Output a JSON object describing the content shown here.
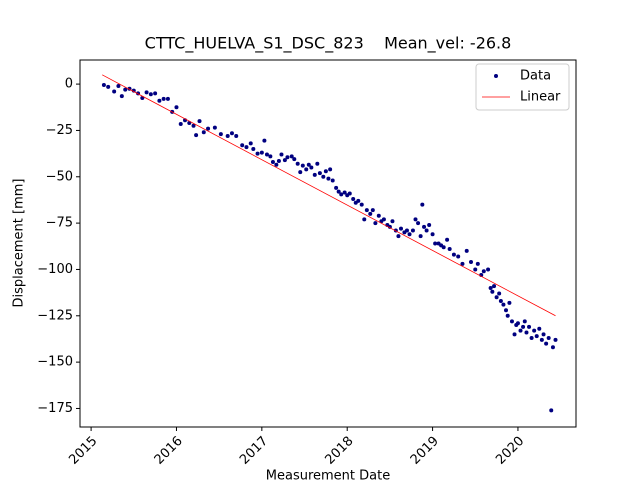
{
  "chart_data": {
    "type": "scatter",
    "title": "CTTC_HUELVA_S1_DSC_823    Mean_vel: -26.8",
    "x_label": "Measurement Date",
    "y_label": "Displacement [mm]",
    "xlim": [
      2014.87,
      2020.68
    ],
    "ylim": [
      -185,
      13
    ],
    "xticks": [
      2015,
      2016,
      2017,
      2018,
      2019,
      2020
    ],
    "yticks": [
      {
        "value": 0,
        "label": "0"
      },
      {
        "value": -25,
        "label": "−25"
      },
      {
        "value": -50,
        "label": "−50"
      },
      {
        "value": -75,
        "label": "−75"
      },
      {
        "value": -100,
        "label": "−100"
      },
      {
        "value": -125,
        "label": "−125"
      },
      {
        "value": -150,
        "label": "−150"
      },
      {
        "value": -175,
        "label": "−175"
      }
    ],
    "legend": "upper right",
    "series": [
      {
        "name": "Data",
        "mode": "markers",
        "color": "#000080",
        "x": [
          2015.15,
          2015.2,
          2015.27,
          2015.32,
          2015.36,
          2015.4,
          2015.45,
          2015.5,
          2015.55,
          2015.6,
          2015.65,
          2015.7,
          2015.75,
          2015.8,
          2015.85,
          2015.9,
          2015.95,
          2016.0,
          2016.05,
          2016.1,
          2016.15,
          2016.2,
          2016.23,
          2016.27,
          2016.32,
          2016.37,
          2016.45,
          2016.52,
          2016.6,
          2016.65,
          2016.7,
          2016.77,
          2016.82,
          2016.87,
          2016.9,
          2016.95,
          2017.0,
          2017.03,
          2017.06,
          2017.1,
          2017.13,
          2017.17,
          2017.2,
          2017.23,
          2017.27,
          2017.3,
          2017.35,
          2017.38,
          2017.42,
          2017.45,
          2017.48,
          2017.52,
          2017.55,
          2017.58,
          2017.62,
          2017.65,
          2017.68,
          2017.72,
          2017.75,
          2017.78,
          2017.8,
          2017.83,
          2017.87,
          2017.9,
          2017.93,
          2017.97,
          2018.0,
          2018.03,
          2018.07,
          2018.1,
          2018.13,
          2018.17,
          2018.2,
          2018.23,
          2018.27,
          2018.3,
          2018.33,
          2018.37,
          2018.4,
          2018.43,
          2018.47,
          2018.5,
          2018.53,
          2018.57,
          2018.6,
          2018.63,
          2018.67,
          2018.7,
          2018.73,
          2018.77,
          2018.8,
          2018.83,
          2018.86,
          2018.88,
          2018.9,
          2018.93,
          2018.96,
          2019.0,
          2019.03,
          2019.07,
          2019.1,
          2019.13,
          2019.17,
          2019.2,
          2019.25,
          2019.3,
          2019.35,
          2019.4,
          2019.45,
          2019.5,
          2019.53,
          2019.57,
          2019.6,
          2019.65,
          2019.68,
          2019.7,
          2019.72,
          2019.75,
          2019.78,
          2019.8,
          2019.83,
          2019.86,
          2019.88,
          2019.9,
          2019.93,
          2019.96,
          2019.98,
          2020.0,
          2020.03,
          2020.06,
          2020.08,
          2020.1,
          2020.13,
          2020.16,
          2020.19,
          2020.22,
          2020.25,
          2020.28,
          2020.3,
          2020.33,
          2020.36,
          2020.39,
          2020.41,
          2020.44
        ],
        "values": [
          -0.5,
          -1.5,
          -4,
          -1,
          -6.5,
          -3,
          -2.5,
          -3.5,
          -5,
          -7.5,
          -4.5,
          -5.5,
          -5,
          -9,
          -8,
          -8,
          -15,
          -12.5,
          -21.5,
          -19.5,
          -21,
          -22.5,
          -27.5,
          -20,
          -26,
          -24,
          -23.5,
          -27,
          -28,
          -26.5,
          -28,
          -33,
          -34,
          -32,
          -35,
          -37.5,
          -37,
          -30.5,
          -38,
          -39,
          -42,
          -43.5,
          -41.5,
          -38,
          -41,
          -39.5,
          -39,
          -40.5,
          -43,
          -47.5,
          -44,
          -46,
          -43.5,
          -45,
          -49,
          -43,
          -48,
          -50,
          -47,
          -51,
          -46,
          -52,
          -56,
          -58,
          -59.5,
          -58.5,
          -60,
          -59,
          -62,
          -64,
          -63,
          -65,
          -73,
          -68,
          -70,
          -68,
          -75,
          -71,
          -74,
          -73,
          -76,
          -77,
          -74,
          -79,
          -82,
          -78,
          -80,
          -79,
          -81,
          -79,
          -73,
          -75,
          -82,
          -65,
          -77,
          -79,
          -76,
          -81,
          -86,
          -86,
          -87,
          -88,
          -84,
          -89,
          -92,
          -93,
          -97,
          -90,
          -96,
          -100,
          -97,
          -103,
          -101,
          -100,
          -110,
          -112,
          -109,
          -115,
          -113,
          -117,
          -119,
          -122,
          -125,
          -118,
          -128,
          -135,
          -130,
          -129,
          -133,
          -131,
          -128,
          -134,
          -131,
          -137,
          -133,
          -136,
          -132,
          -138,
          -135,
          -140,
          -137,
          -176,
          -142,
          -138
        ]
      },
      {
        "name": "Linear",
        "mode": "line",
        "color": "#ff0000",
        "x": [
          2015.13,
          2020.44
        ],
        "values": [
          5,
          -125
        ]
      }
    ]
  }
}
